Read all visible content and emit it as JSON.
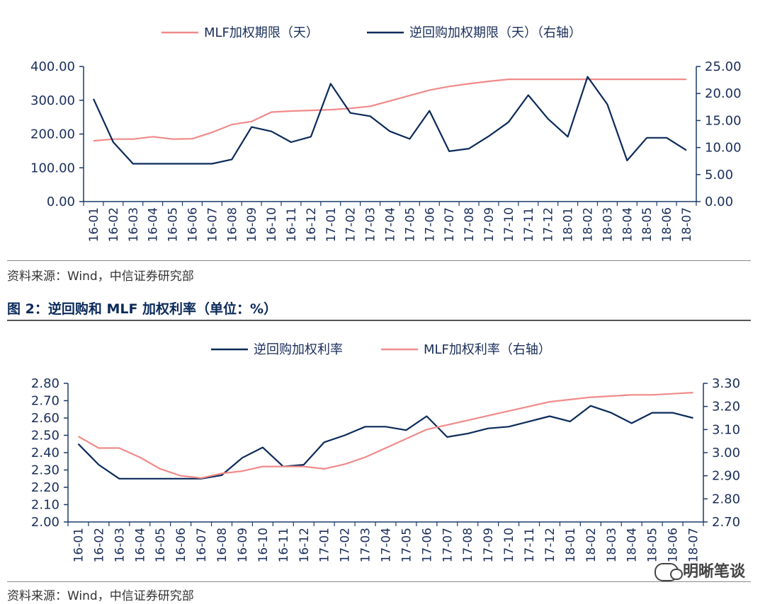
{
  "source_text": "资料来源：Wind，中信证券研究部",
  "figure2_title": "图 2：逆回购和 MLF 加权利率（单位：%）",
  "watermark": "明晰笔谈",
  "colors": {
    "navy": "#0b2a5a",
    "pink": "#f08a8a"
  },
  "chart_data": [
    {
      "type": "line",
      "categories": [
        "16-01",
        "16-02",
        "16-03",
        "16-04",
        "16-05",
        "16-06",
        "16-07",
        "16-08",
        "16-09",
        "16-10",
        "16-11",
        "16-12",
        "17-01",
        "17-02",
        "17-03",
        "17-04",
        "17-05",
        "17-06",
        "17-07",
        "17-08",
        "17-09",
        "17-10",
        "17-11",
        "17-12",
        "18-01",
        "18-02",
        "18-03",
        "18-04",
        "18-05",
        "18-06",
        "18-07"
      ],
      "series": [
        {
          "name": "MLF加权期限（天）",
          "axis": "left",
          "color": "#f08a8a",
          "values": [
            180,
            185,
            185,
            192,
            185,
            186,
            205,
            228,
            237,
            265,
            268,
            270,
            272,
            276,
            282,
            298,
            314,
            330,
            341,
            349,
            356,
            362,
            362,
            362,
            362,
            362,
            362,
            362,
            362,
            362,
            362
          ]
        },
        {
          "name": "逆回购加权期限（天）（右轴）",
          "axis": "right",
          "color": "#0b2a5a",
          "values": [
            19.0,
            11.0,
            7.0,
            7.0,
            7.0,
            7.0,
            7.0,
            7.8,
            13.8,
            13.0,
            11.0,
            12.0,
            21.8,
            16.4,
            15.8,
            13.0,
            11.6,
            16.8,
            9.3,
            9.8,
            12.1,
            14.7,
            19.7,
            15.3,
            12.0,
            23.1,
            18.0,
            7.6,
            11.8,
            11.8,
            9.5
          ]
        }
      ],
      "yleft": {
        "min": 0,
        "max": 400,
        "ticks": [
          "0.00",
          "100.00",
          "200.00",
          "300.00",
          "400.00"
        ]
      },
      "yright": {
        "min": 0,
        "max": 25,
        "ticks": [
          "0.00",
          "5.00",
          "10.00",
          "15.00",
          "20.00",
          "25.00"
        ]
      },
      "legend": "top"
    },
    {
      "type": "line",
      "categories": [
        "16-01",
        "16-02",
        "16-03",
        "16-04",
        "16-05",
        "16-06",
        "16-07",
        "16-08",
        "16-09",
        "16-10",
        "16-11",
        "16-12",
        "17-01",
        "17-02",
        "17-03",
        "17-04",
        "17-05",
        "17-06",
        "17-07",
        "17-08",
        "17-09",
        "17-10",
        "17-11",
        "17-12",
        "18-01",
        "18-02",
        "18-03",
        "18-04",
        "18-05",
        "18-06",
        "18-07"
      ],
      "series": [
        {
          "name": "逆回购加权利率",
          "axis": "left",
          "color": "#0b2a5a",
          "values": [
            2.45,
            2.33,
            2.25,
            2.25,
            2.25,
            2.25,
            2.25,
            2.27,
            2.37,
            2.43,
            2.32,
            2.33,
            2.46,
            2.5,
            2.55,
            2.55,
            2.53,
            2.61,
            2.49,
            2.51,
            2.54,
            2.55,
            2.58,
            2.61,
            2.58,
            2.67,
            2.63,
            2.57,
            2.63,
            2.63,
            2.6
          ]
        },
        {
          "name": "MLF加权利率（右轴）",
          "axis": "right",
          "color": "#f08a8a",
          "values": [
            3.07,
            3.02,
            3.02,
            2.98,
            2.93,
            2.9,
            2.89,
            2.91,
            2.92,
            2.94,
            2.94,
            2.94,
            2.93,
            2.95,
            2.98,
            3.02,
            3.06,
            3.1,
            3.12,
            3.14,
            3.16,
            3.18,
            3.2,
            3.22,
            3.23,
            3.24,
            3.245,
            3.25,
            3.25,
            3.255,
            3.26
          ]
        }
      ],
      "yleft": {
        "min": 2.0,
        "max": 2.8,
        "ticks": [
          "2.00",
          "2.10",
          "2.20",
          "2.30",
          "2.40",
          "2.50",
          "2.60",
          "2.70",
          "2.80"
        ]
      },
      "yright": {
        "min": 2.7,
        "max": 3.3,
        "ticks": [
          "2.70",
          "2.80",
          "2.90",
          "3.00",
          "3.10",
          "3.20",
          "3.30"
        ]
      },
      "legend": "top"
    }
  ]
}
